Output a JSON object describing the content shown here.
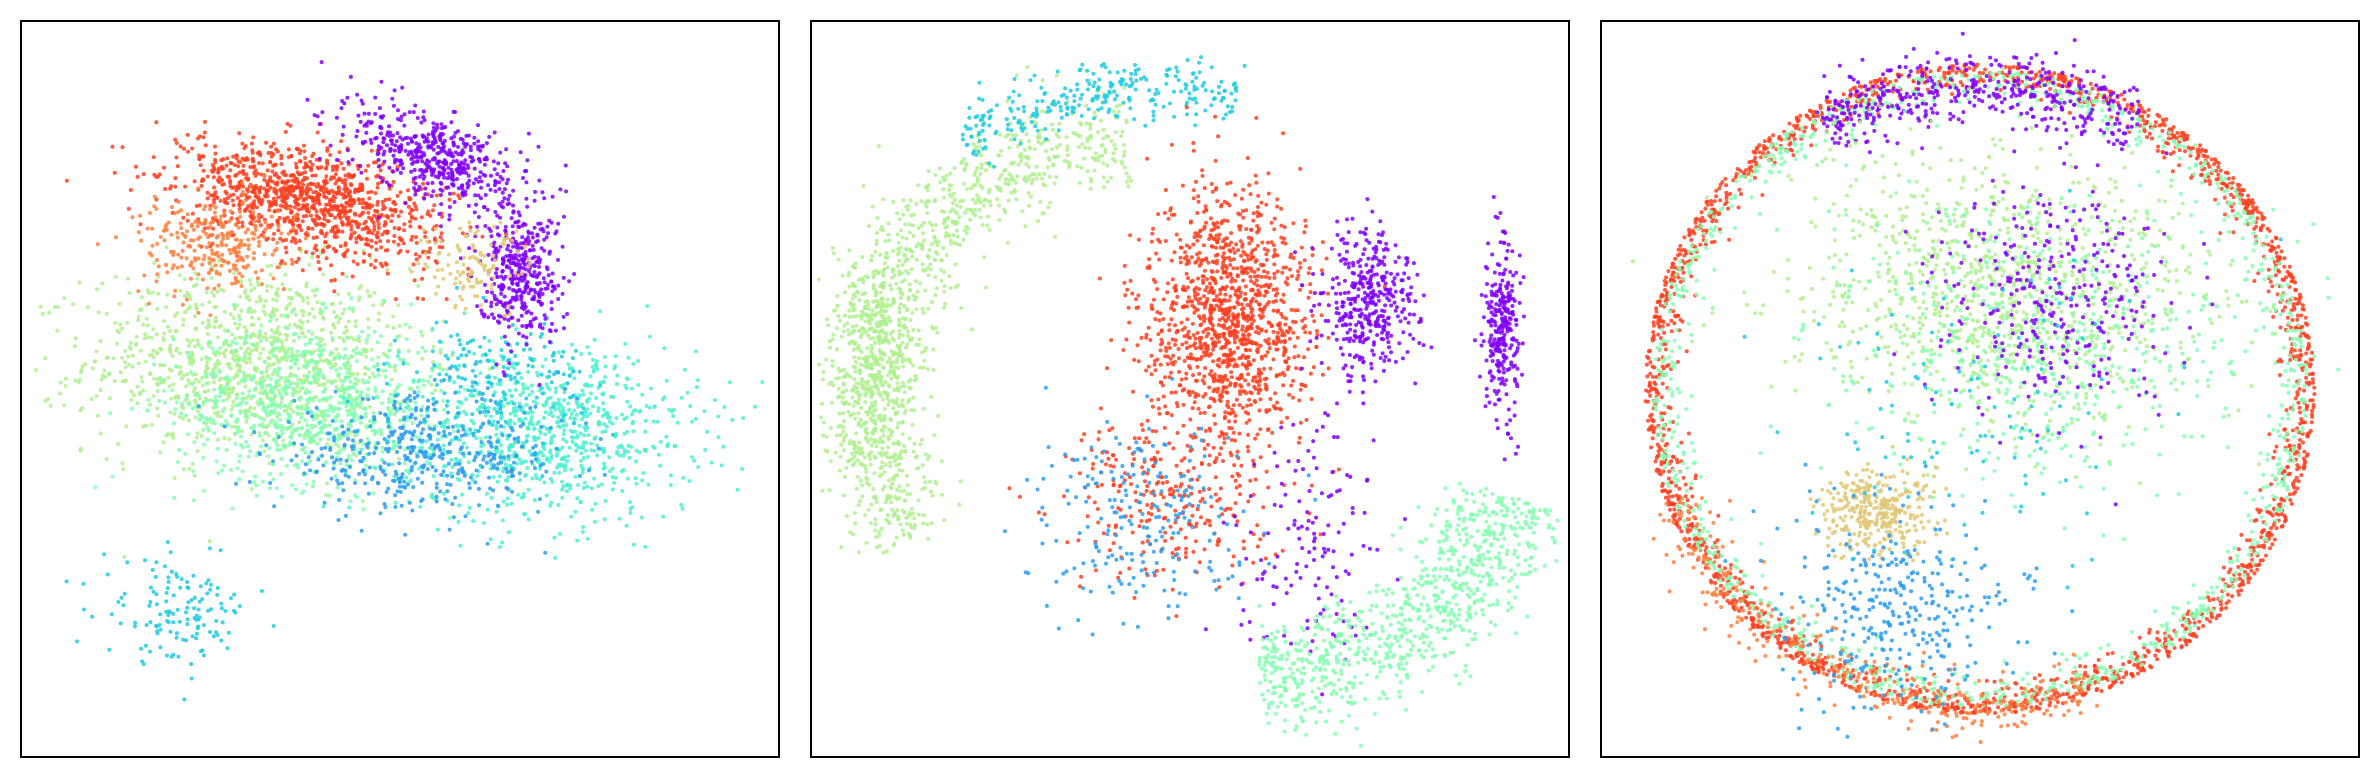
{
  "figure": {
    "panel_count": 3,
    "axes_visible": false,
    "ticks_visible": false,
    "frame": true,
    "background": "#ffffff"
  },
  "palette": {
    "purple": "#8000ff",
    "blue": "#2c9df0",
    "cyan": "#1ecbe1",
    "aqua": "#4ef0d0",
    "mint": "#84ffb0",
    "lightgreen": "#b0f090",
    "tan": "#e0c878",
    "orange": "#ff8040",
    "red": "#ff4020"
  },
  "chart_data": [
    {
      "type": "scatter",
      "title": "",
      "xlabel": "",
      "ylabel": "",
      "xlim": [
        0,
        100
      ],
      "ylim": [
        0,
        100
      ],
      "clusters": [
        {
          "color": "lightgreen",
          "n": 1900,
          "cx": 30,
          "cy": 54,
          "sx": 11,
          "sy": 6.5,
          "shape": "gauss"
        },
        {
          "color": "mint",
          "n": 1400,
          "cx": 38,
          "cy": 48,
          "sx": 9,
          "sy": 5.5,
          "shape": "gauss"
        },
        {
          "color": "aqua",
          "n": 1500,
          "cx": 70,
          "cy": 44,
          "sx": 10,
          "sy": 6,
          "shape": "gauss"
        },
        {
          "color": "blue",
          "n": 800,
          "cx": 53,
          "cy": 41,
          "sx": 10,
          "sy": 4,
          "shape": "gauss"
        },
        {
          "color": "cyan",
          "n": 250,
          "cx": 20,
          "cy": 19,
          "sx": 5,
          "sy": 3.5,
          "shape": "gauss"
        },
        {
          "color": "cyan",
          "n": 300,
          "cx": 63,
          "cy": 52,
          "sx": 6,
          "sy": 4,
          "shape": "gauss"
        },
        {
          "color": "red",
          "n": 2000,
          "cx": 38,
          "cy": 76,
          "sx": 9,
          "sy": 3.5,
          "shape": "gauss",
          "rot": -14
        },
        {
          "color": "orange",
          "n": 500,
          "cx": 25,
          "cy": 70,
          "sx": 5,
          "sy": 3.5,
          "shape": "gauss"
        },
        {
          "color": "purple",
          "n": 900,
          "cx": 55,
          "cy": 82,
          "sx": 6,
          "sy": 3,
          "shape": "gauss",
          "rot": -22
        },
        {
          "color": "purple",
          "n": 700,
          "cx": 66,
          "cy": 66,
          "sx": 2.8,
          "sy": 4.5,
          "shape": "gauss"
        },
        {
          "color": "tan",
          "n": 200,
          "cx": 60,
          "cy": 67,
          "sx": 4,
          "sy": 3,
          "shape": "gauss"
        }
      ]
    },
    {
      "type": "scatter",
      "title": "",
      "xlabel": "",
      "ylabel": "",
      "xlim": [
        0,
        100
      ],
      "ylim": [
        0,
        100
      ],
      "clusters": [
        {
          "color": "lightgreen",
          "n": 1700,
          "shape": "arc",
          "ax": 45,
          "ay": 48,
          "r": 38,
          "a0": 95,
          "a1": 210,
          "w": 3.5
        },
        {
          "color": "lightgreen",
          "n": 900,
          "cx": 8,
          "cy": 53,
          "sx": 3,
          "sy": 9,
          "shape": "gauss"
        },
        {
          "color": "cyan",
          "n": 500,
          "shape": "arc",
          "ax": 45,
          "ay": 48,
          "r": 44,
          "a0": 75,
          "a1": 125,
          "w": 2.2
        },
        {
          "color": "red",
          "n": 2200,
          "cx": 55,
          "cy": 60,
          "sx": 5.5,
          "sy": 9,
          "shape": "gauss"
        },
        {
          "color": "red",
          "n": 500,
          "cx": 47,
          "cy": 36,
          "sx": 7,
          "sy": 6,
          "shape": "gauss"
        },
        {
          "color": "blue",
          "n": 400,
          "cx": 44,
          "cy": 32,
          "sx": 7,
          "sy": 7,
          "shape": "gauss"
        },
        {
          "color": "purple",
          "n": 700,
          "cx": 74,
          "cy": 62,
          "sx": 3.2,
          "sy": 5,
          "shape": "gauss"
        },
        {
          "color": "purple",
          "n": 500,
          "cx": 92,
          "cy": 59,
          "sx": 1.2,
          "sy": 6,
          "shape": "gauss"
        },
        {
          "color": "purple",
          "n": 250,
          "cx": 66,
          "cy": 30,
          "sx": 5,
          "sy": 9,
          "shape": "gauss"
        },
        {
          "color": "mint",
          "n": 1500,
          "shape": "arc",
          "ax": 58,
          "ay": 48,
          "r": 38,
          "a0": 272,
          "a1": 340,
          "w": 4
        }
      ]
    },
    {
      "type": "scatter",
      "title": "",
      "xlabel": "",
      "ylabel": "",
      "xlim": [
        0,
        100
      ],
      "ylim": [
        0,
        100
      ],
      "clusters": [
        {
          "color": "red",
          "n": 3500,
          "shape": "ring",
          "ax": 50,
          "ay": 50,
          "r": 45,
          "w": 1.8
        },
        {
          "color": "mint",
          "n": 1800,
          "shape": "ring",
          "ax": 50,
          "ay": 50,
          "r": 44,
          "w": 2.2
        },
        {
          "color": "orange",
          "n": 600,
          "shape": "arc",
          "ax": 50,
          "ay": 50,
          "r": 44,
          "a0": 200,
          "a1": 290,
          "w": 2.2
        },
        {
          "color": "purple",
          "n": 800,
          "shape": "arc",
          "ax": 50,
          "ay": 50,
          "r": 42,
          "a0": 60,
          "a1": 120,
          "w": 2.5
        },
        {
          "color": "lightgreen",
          "n": 1800,
          "cx": 53,
          "cy": 64,
          "sx": 14,
          "sy": 9,
          "shape": "gauss"
        },
        {
          "color": "mint",
          "n": 900,
          "cx": 58,
          "cy": 56,
          "sx": 14,
          "sy": 10,
          "shape": "gauss"
        },
        {
          "color": "purple",
          "n": 600,
          "cx": 60,
          "cy": 63,
          "sx": 8,
          "sy": 8,
          "shape": "gauss"
        },
        {
          "color": "tan",
          "n": 600,
          "cx": 36,
          "cy": 33,
          "sx": 4,
          "sy": 3,
          "shape": "gauss"
        },
        {
          "color": "blue",
          "n": 600,
          "cx": 40,
          "cy": 20,
          "sx": 8,
          "sy": 7,
          "shape": "gauss"
        },
        {
          "color": "cyan",
          "n": 200,
          "cx": 50,
          "cy": 47,
          "sx": 12,
          "sy": 10,
          "shape": "gauss"
        }
      ]
    }
  ]
}
